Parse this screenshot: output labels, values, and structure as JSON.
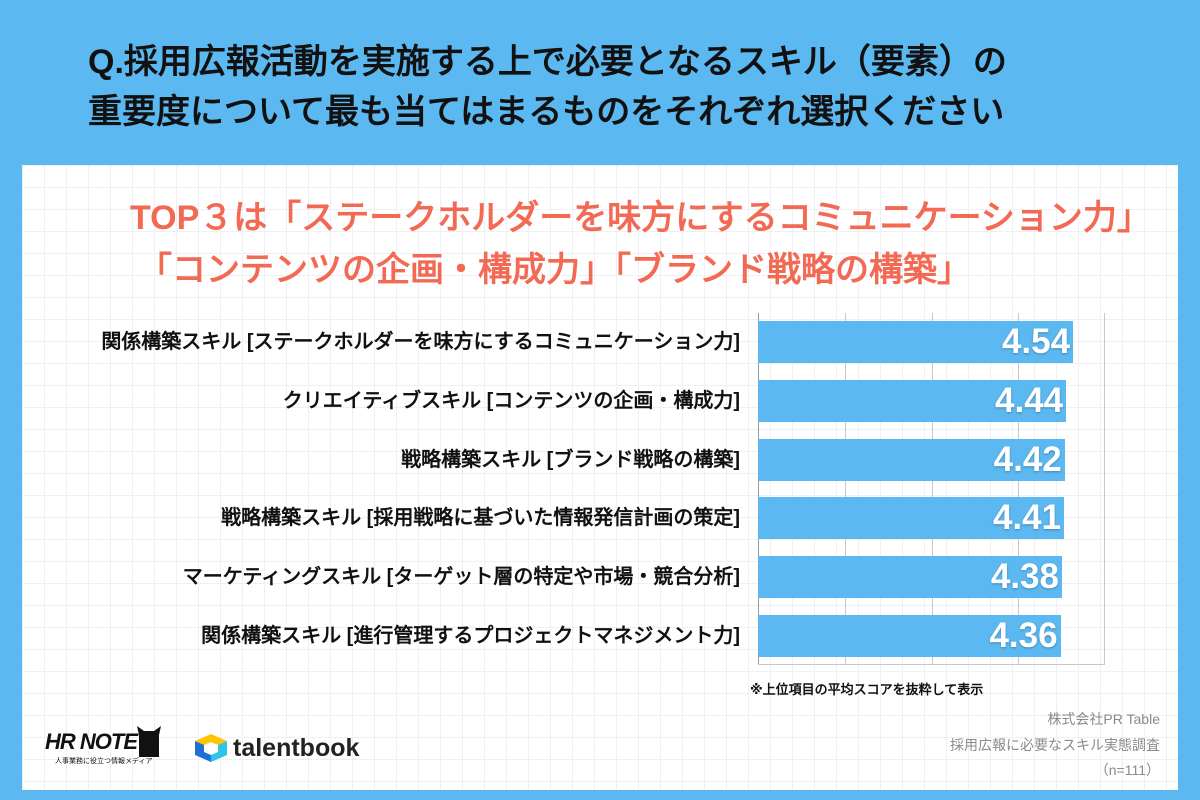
{
  "colors": {
    "frame": "#5bb8f0",
    "bar": "#5bb8f0",
    "headline": "#f26a54",
    "source_text": "#8a8a8a",
    "data_label": "#ffffff"
  },
  "question": {
    "line1": "Q.採用広報活動を実施する上で必要となるスキル（要素）の",
    "line2": "重要度について最も当てはまるものをそれぞれ選択ください"
  },
  "headline": {
    "line1": "TOP３は「ステークホルダーを味方にするコミュニケーション力」",
    "line2": "「コンテンツの企画・構成力」「ブランド戦略の構築」"
  },
  "chart_data": {
    "type": "bar",
    "orientation": "horizontal",
    "categories": [
      "関係構築スキル [ステークホルダーを味方にするコミュニケーション力]",
      "クリエイティブスキル [コンテンツの企画・構成力]",
      "戦略構築スキル [ブランド戦略の構築]",
      "戦略構築スキル [採用戦略に基づいた情報発信計画の策定]",
      "マーケティングスキル [ターゲット層の特定や市場・競合分析]",
      "関係構築スキル [進行管理するプロジェクトマネジメント力]"
    ],
    "values": [
      4.54,
      4.44,
      4.42,
      4.41,
      4.38,
      4.36
    ],
    "xlim": [
      0,
      5
    ],
    "grid": true,
    "data_labels": true
  },
  "footnote": "※上位項目の平均スコアを抜粋して表示",
  "logos": {
    "hr_note": {
      "name": "HR NOTE",
      "tagline": "人事業務に役立つ情報メディア",
      "icon": "cat-icon"
    },
    "talentbook": {
      "name": "talentbook",
      "icon": "cube-icon"
    }
  },
  "source": {
    "company": "株式会社PR Table",
    "survey": "採用広報に必要なスキル実態調査",
    "sample": "（n=111）"
  }
}
